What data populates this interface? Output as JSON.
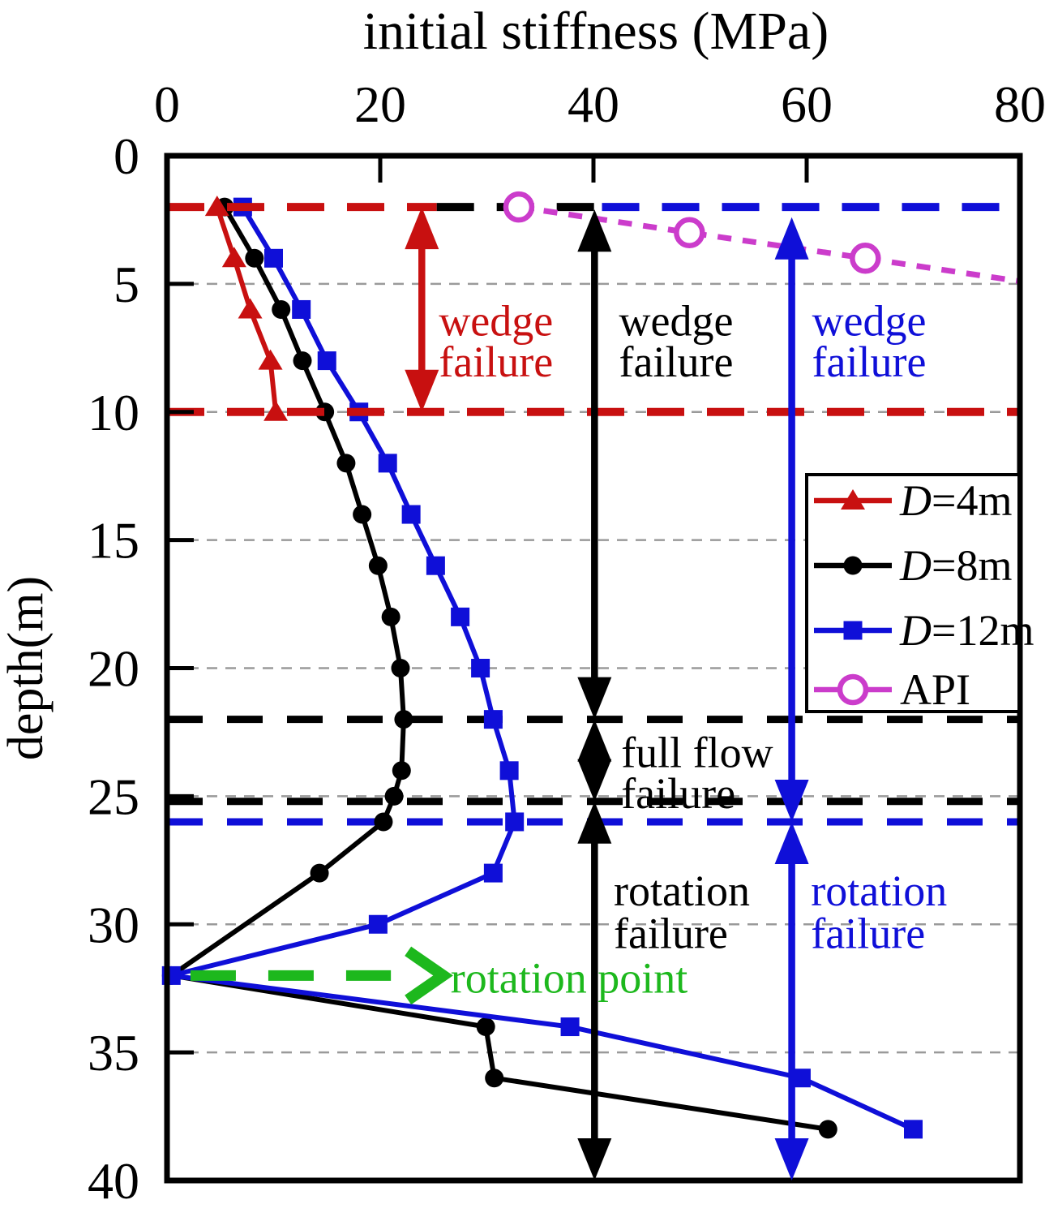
{
  "colors": {
    "red": "#c81010",
    "black": "#000000",
    "blue": "#0f0fd8",
    "magenta": "#cb3ccb",
    "green": "#1db81d",
    "grid": "#9a9a9a",
    "frame": "#000000",
    "background": "#ffffff"
  },
  "chart_data": {
    "type": "line",
    "title": "initial stiffness (MPa)",
    "xlabel": "initial stiffness (MPa)",
    "ylabel": "depth(m)",
    "xlim": [
      0,
      80
    ],
    "ylim": [
      0,
      40
    ],
    "y_inverted": true,
    "x_axis_position": "top",
    "grid": "horizontal-dashed",
    "x_ticks": [
      0,
      20,
      40,
      60,
      80
    ],
    "y_ticks": [
      0,
      5,
      10,
      15,
      20,
      25,
      30,
      35,
      40
    ],
    "grid_depths": [
      5,
      10,
      15,
      20,
      25,
      30,
      35
    ],
    "series": [
      {
        "name": "D=8m",
        "marker": "circle",
        "color_key": "black",
        "points": [
          [
            5.4,
            2
          ],
          [
            8.2,
            4
          ],
          [
            10.7,
            6
          ],
          [
            12.7,
            8
          ],
          [
            14.8,
            10
          ],
          [
            16.8,
            12
          ],
          [
            18.3,
            14
          ],
          [
            19.8,
            16
          ],
          [
            21.0,
            18
          ],
          [
            21.9,
            20
          ],
          [
            22.2,
            22
          ],
          [
            22.0,
            24
          ],
          [
            21.3,
            25
          ],
          [
            20.3,
            26
          ],
          [
            14.3,
            28
          ],
          [
            0.4,
            32
          ],
          [
            29.9,
            34
          ],
          [
            30.7,
            36
          ],
          [
            62.0,
            38
          ]
        ]
      },
      {
        "name": "D=12m",
        "marker": "square",
        "color_key": "blue",
        "points": [
          [
            7.1,
            2
          ],
          [
            10.0,
            4
          ],
          [
            12.6,
            6
          ],
          [
            15.0,
            8
          ],
          [
            18.0,
            10
          ],
          [
            20.7,
            12
          ],
          [
            22.9,
            14
          ],
          [
            25.2,
            16
          ],
          [
            27.5,
            18
          ],
          [
            29.4,
            20
          ],
          [
            30.6,
            22
          ],
          [
            32.1,
            24
          ],
          [
            32.6,
            26
          ],
          [
            30.6,
            28
          ],
          [
            19.8,
            30
          ],
          [
            0.4,
            32
          ],
          [
            37.8,
            34
          ],
          [
            59.5,
            36
          ],
          [
            70.0,
            38
          ]
        ]
      },
      {
        "name": "D=4m",
        "marker": "triangle",
        "color_key": "red",
        "points": [
          [
            4.7,
            2
          ],
          [
            6.3,
            4
          ],
          [
            7.8,
            6
          ],
          [
            9.7,
            8
          ],
          [
            10.2,
            10
          ]
        ]
      },
      {
        "name": "API",
        "marker": "open-circle",
        "color_key": "magenta",
        "dashed": true,
        "points": [
          [
            33,
            2
          ],
          [
            49,
            3
          ],
          [
            65.5,
            4
          ]
        ],
        "line_extension": [
          80,
          4.9
        ]
      }
    ],
    "legend_order": [
      "D=4m",
      "D=8m",
      "D=12m",
      "API"
    ],
    "boundary_lines": [
      {
        "z": 22,
        "k1": 0,
        "k2": 80,
        "color_key": "black"
      },
      {
        "z": 25.2,
        "k1": 0,
        "k2": 80,
        "color_key": "black"
      },
      {
        "z": 26,
        "k1": 0,
        "k2": 80,
        "color_key": "blue"
      },
      {
        "z": 2,
        "k1": 0,
        "k2": 25.3,
        "color_key": "red"
      },
      {
        "z": 2,
        "k1": 25.3,
        "k2": 40.8,
        "color_key": "black"
      },
      {
        "z": 2,
        "k1": 40.8,
        "k2": 80,
        "color_key": "blue"
      },
      {
        "z": 10,
        "k1": 0,
        "k2": 80,
        "color_key": "red"
      }
    ],
    "zone_arrows": [
      {
        "color_key": "red",
        "k": 23.9,
        "segments": [
          [
            2,
            10
          ]
        ]
      },
      {
        "color_key": "black",
        "k": 40.1,
        "segments": [
          [
            2.1,
            22
          ],
          [
            22,
            25.2
          ],
          [
            25.2,
            40
          ]
        ]
      },
      {
        "color_key": "blue",
        "k": 58.6,
        "segments": [
          [
            2.4,
            26
          ],
          [
            26,
            40
          ]
        ]
      }
    ],
    "rotation_arrow": {
      "z": 32,
      "k_start": 2.2,
      "k_dash_end": 21.0,
      "chevron_tip_k": 25.9,
      "chevron_back_k": 22.6,
      "chevron_half_m": 0.95,
      "color_key": "green"
    },
    "annotations": [
      {
        "lines": [
          "wedge",
          "failure"
        ],
        "color_key": "red",
        "k": 25.5,
        "z_lines": [
          6.45,
          8.05
        ]
      },
      {
        "lines": [
          "wedge",
          "failure"
        ],
        "color_key": "black",
        "k": 42.4,
        "z_lines": [
          6.45,
          8.05
        ]
      },
      {
        "lines": [
          "wedge",
          "failure"
        ],
        "color_key": "blue",
        "k": 60.5,
        "z_lines": [
          6.45,
          8.05
        ]
      },
      {
        "lines": [
          "full flow",
          "failure"
        ],
        "color_key": "black",
        "k": 42.6,
        "z_lines": [
          23.3,
          24.9
        ]
      },
      {
        "lines": [
          "rotation",
          "failure"
        ],
        "color_key": "black",
        "k": 41.9,
        "z_lines": [
          28.7,
          30.35
        ]
      },
      {
        "lines": [
          "rotation",
          "failure"
        ],
        "color_key": "blue",
        "k": 60.4,
        "z_lines": [
          28.7,
          30.35
        ]
      },
      {
        "lines": [
          "rotation point"
        ],
        "color_key": "green",
        "k": 26.6,
        "z_lines": [
          32.1
        ]
      }
    ],
    "failure_zones_summary": {
      "D=4m": [
        {
          "zone": "wedge failure",
          "depth_range": [
            2,
            10
          ]
        }
      ],
      "D=8m": [
        {
          "zone": "wedge failure",
          "depth_range": [
            2,
            22
          ]
        },
        {
          "zone": "full flow failure",
          "depth_range": [
            22,
            25.2
          ]
        },
        {
          "zone": "rotation failure",
          "depth_range": [
            25.2,
            40
          ]
        }
      ],
      "D=12m": [
        {
          "zone": "wedge failure",
          "depth_range": [
            2,
            26
          ]
        },
        {
          "zone": "rotation failure",
          "depth_range": [
            26,
            40
          ]
        }
      ],
      "rotation_point_depth_m": 32
    }
  }
}
